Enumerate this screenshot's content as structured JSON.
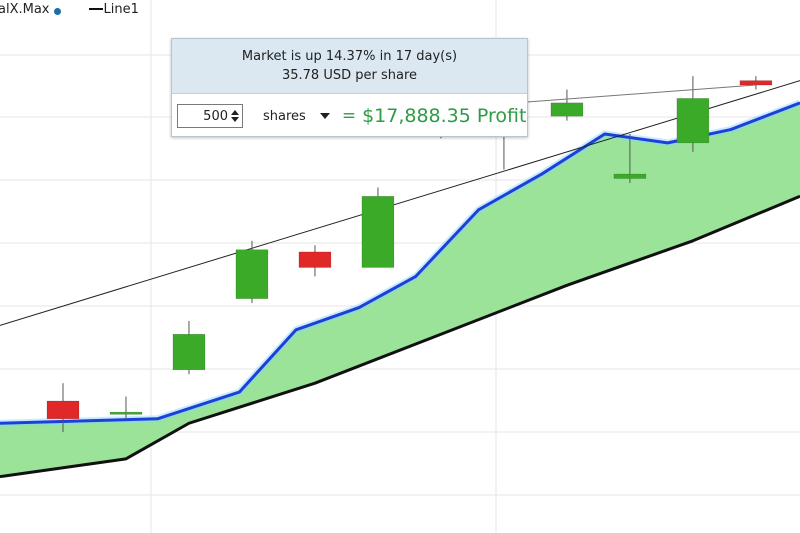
{
  "legend": [
    {
      "label": "alX.Max",
      "swatch": "dot",
      "color": "#1a6fa8"
    },
    {
      "label": "Line1",
      "swatch": "line",
      "color": "#111111"
    }
  ],
  "tooltip": {
    "headline": "Market is up 14.37% in 17 day(s)",
    "per_share": "35.78 USD per share",
    "quantity": "500",
    "unit": "shares",
    "equals": "=",
    "profit": "$17,888.35 Profit"
  },
  "colors": {
    "up": "#3aaa28",
    "down": "#e02828",
    "band_fill": "#9ce39a",
    "band_upper": "#1f3fd8",
    "band_lower": "#111111",
    "trend_line": "#222222"
  },
  "chart_data": {
    "type": "candlestick",
    "x": [
      1,
      2,
      3,
      4,
      5,
      6,
      7,
      8,
      9,
      10,
      11,
      12
    ],
    "ylim": [
      0,
      10
    ],
    "candles": [
      {
        "x": 1,
        "open": 2.0,
        "close": 1.6,
        "high": 2.4,
        "low": 1.3
      },
      {
        "x": 2,
        "open": 1.7,
        "close": 1.75,
        "high": 2.1,
        "low": 1.6
      },
      {
        "x": 3,
        "open": 2.7,
        "close": 3.5,
        "high": 3.8,
        "low": 2.6
      },
      {
        "x": 4,
        "open": 4.3,
        "close": 5.4,
        "high": 5.6,
        "low": 4.2
      },
      {
        "x": 5,
        "open": 5.35,
        "close": 5.0,
        "high": 5.5,
        "low": 4.8
      },
      {
        "x": 6,
        "open": 5.0,
        "close": 6.6,
        "high": 6.8,
        "low": 5.0
      },
      {
        "x": 7,
        "open": 8.6,
        "close": 8.2,
        "high": 8.8,
        "low": 7.9
      },
      {
        "x": 8,
        "open": 8.5,
        "close": 8.15,
        "high": 8.5,
        "low": 7.2
      },
      {
        "x": 9,
        "open": 8.4,
        "close": 8.7,
        "high": 9.0,
        "low": 8.3
      },
      {
        "x": 10,
        "open": 7.0,
        "close": 7.1,
        "high": 8.0,
        "low": 6.9
      },
      {
        "x": 11,
        "open": 7.8,
        "close": 8.8,
        "high": 9.3,
        "low": 7.6
      },
      {
        "x": 12,
        "open": 9.2,
        "close": 9.1,
        "high": 9.3,
        "low": 9.0
      }
    ],
    "series": [
      {
        "name": "alX.Max",
        "x": [
          0.0,
          2.5,
          3.8,
          4.7,
          5.7,
          6.6,
          7.6,
          8.6,
          9.6,
          10.6,
          11.6,
          12.7
        ],
        "values": [
          1.5,
          1.6,
          2.2,
          3.6,
          4.1,
          4.8,
          6.3,
          7.1,
          8.0,
          7.8,
          8.1,
          8.7
        ]
      },
      {
        "name": "",
        "x": [
          0.0,
          2.0,
          3.0,
          5.0,
          7.0,
          9.0,
          11.0,
          12.7
        ],
        "values": [
          0.3,
          0.7,
          1.5,
          2.4,
          3.5,
          4.6,
          5.6,
          6.6
        ]
      },
      {
        "name": "Line1",
        "x": [
          0.0,
          12.7
        ],
        "values": [
          3.7,
          9.2
        ]
      }
    ]
  }
}
